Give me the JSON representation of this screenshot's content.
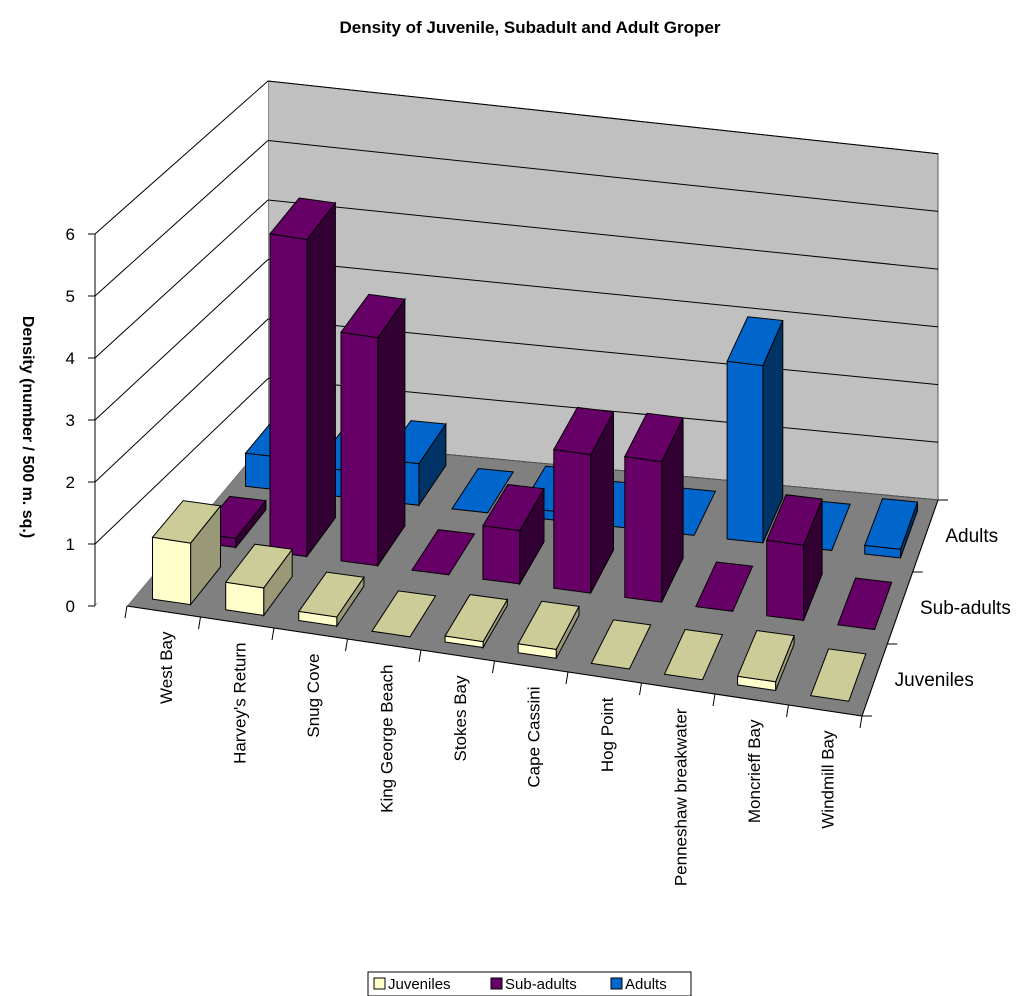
{
  "chart_data": {
    "type": "bar",
    "subtype": "3d-column",
    "title": "Density of Juvenile, Subadult and Adult Groper",
    "ylabel": "Density (number / 500 m. sq.)",
    "xlabel": "",
    "ylim": [
      0,
      6
    ],
    "yticks": [
      "0",
      "1",
      "2",
      "3",
      "4",
      "5",
      "6"
    ],
    "categories": [
      "West Bay",
      "Harvey's Return",
      "Snug Cove",
      "King George Beach",
      "Stokes Bay",
      "Cape Cassini",
      "Hog Point",
      "Penneshaw breakwater",
      "Moncrieff Bay",
      "Windmill Bay"
    ],
    "series": [
      {
        "name": "Juveniles",
        "values": [
          1.0,
          0.45,
          0.15,
          0,
          0.1,
          0.15,
          0,
          0,
          0.15,
          0
        ]
      },
      {
        "name": "Sub-adults",
        "values": [
          0.15,
          5.25,
          3.8,
          0,
          0.9,
          2.35,
          2.4,
          0,
          1.3,
          0
        ]
      },
      {
        "name": "Adults",
        "values": [
          0.55,
          0.45,
          0.7,
          0,
          0.15,
          0,
          0,
          3.05,
          0,
          0.15
        ]
      }
    ],
    "depth_labels": [
      "Adults",
      "Sub-adults",
      "Juveniles"
    ],
    "legend_position": "bottom",
    "grid": true,
    "colors": {
      "Juveniles": {
        "front": "#ffffcc",
        "side": "#999977",
        "top": "#cccc99"
      },
      "Sub-adults": {
        "front": "#660066",
        "side": "#330033",
        "top": "#660066"
      },
      "Adults": {
        "front": "#0066cc",
        "side": "#003366",
        "top": "#0066cc"
      },
      "back_wall": "#c0c0c0",
      "floor": "#808080"
    }
  }
}
